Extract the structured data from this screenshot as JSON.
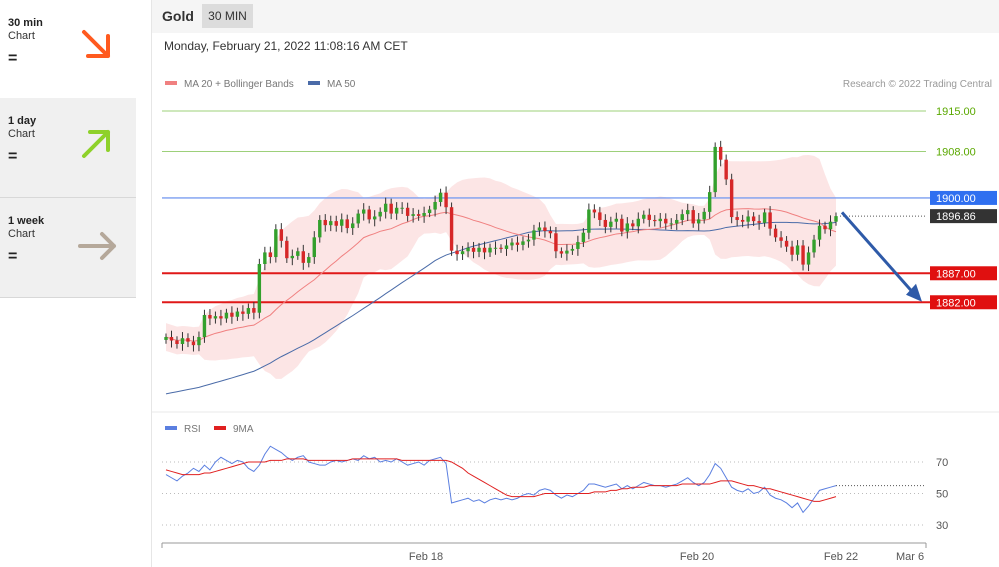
{
  "sidebar": {
    "items": [
      {
        "period": "30 min",
        "sub": "Chart",
        "status": "=",
        "arrow": "down-right",
        "color": "#ff5a1f"
      },
      {
        "period": "1 day",
        "sub": "Chart",
        "status": "=",
        "arrow": "up-right",
        "color": "#8ed12a"
      },
      {
        "period": "1 week",
        "sub": "Chart",
        "status": "=",
        "arrow": "right",
        "color": "#b5a89a"
      }
    ]
  },
  "header": {
    "symbol": "Gold",
    "interval": "30 MIN"
  },
  "timestamp": "Monday, February 21, 2022 11:08:16 AM CET",
  "colors": {
    "up": "#33a02c",
    "down": "#d62728",
    "ma20": "#f08080",
    "band": "#fbe0e0",
    "ma50": "#4a6ba8",
    "rsi": "#5b7fe0",
    "rsi_ma": "#e02020",
    "forecast": "#2e5aa8"
  },
  "chart_data": [
    {
      "type": "candlestick",
      "legend": [
        {
          "name": "MA 20 + Bollinger Bands",
          "color": "#f08080"
        },
        {
          "name": "MA 50",
          "color": "#4a6ba8"
        }
      ],
      "legend_placement": "top-left",
      "credit": "Research © 2022 Trading Central",
      "ylim": [
        1866,
        1920
      ],
      "levels": [
        {
          "value": 1915.0,
          "label": "1915.00",
          "style": "green-line"
        },
        {
          "value": 1908.0,
          "label": "1908.00",
          "style": "green-line"
        },
        {
          "value": 1900.0,
          "label": "1900.00",
          "style": "blue-tag"
        },
        {
          "value": 1896.86,
          "label": "1896.86",
          "style": "last-price-tag"
        },
        {
          "value": 1887.0,
          "label": "1887.00",
          "style": "red-tag"
        },
        {
          "value": 1882.0,
          "label": "1882.00",
          "style": "red-tag"
        }
      ],
      "closes": [
        1876.0,
        1875.4,
        1874.8,
        1875.8,
        1875.2,
        1874.6,
        1876.0,
        1879.8,
        1879.2,
        1879.6,
        1879.2,
        1880.2,
        1879.5,
        1880.4,
        1880.0,
        1881.0,
        1880.2,
        1888.6,
        1890.6,
        1889.8,
        1894.6,
        1892.6,
        1889.6,
        1890.0,
        1890.8,
        1888.8,
        1889.8,
        1893.2,
        1896.2,
        1895.3,
        1896.0,
        1895.2,
        1896.3,
        1894.8,
        1895.6,
        1897.3,
        1898.0,
        1896.3,
        1896.8,
        1897.6,
        1899.0,
        1897.3,
        1898.3,
        1898.3,
        1896.9,
        1897.2,
        1896.9,
        1897.4,
        1898.0,
        1899.3,
        1900.9,
        1898.4,
        1890.9,
        1890.3,
        1890.8,
        1891.4,
        1890.7,
        1891.4,
        1890.6,
        1891.4,
        1891.4,
        1891.2,
        1891.8,
        1892.3,
        1891.9,
        1892.5,
        1892.8,
        1894.4,
        1894.9,
        1894.3,
        1893.9,
        1890.8,
        1890.4,
        1890.9,
        1891.2,
        1892.4,
        1894.0,
        1898.0,
        1897.5,
        1896.2,
        1895.0,
        1895.9,
        1896.4,
        1894.2,
        1895.6,
        1895.1,
        1896.4,
        1897.1,
        1896.2,
        1896.0,
        1896.4,
        1895.6,
        1895.6,
        1896.2,
        1897.2,
        1897.9,
        1895.6,
        1896.3,
        1897.6,
        1901.0,
        1908.8,
        1906.6,
        1903.2,
        1896.7,
        1896.2,
        1895.9,
        1896.8,
        1896.0,
        1895.7,
        1897.5,
        1894.7,
        1893.2,
        1892.6,
        1891.6,
        1890.2,
        1891.8,
        1888.5,
        1890.6,
        1892.8,
        1895.2,
        1894.6,
        1895.9,
        1896.86
      ]
    },
    {
      "type": "line",
      "series": [
        {
          "name": "RSI",
          "color": "#5b7fe0",
          "values": [
            62,
            60,
            58,
            61,
            63,
            66,
            64,
            68,
            65,
            70,
            73,
            71,
            69,
            71,
            70,
            66,
            64,
            68,
            75,
            80,
            78,
            76,
            73,
            71,
            73,
            74,
            70,
            69,
            68,
            68,
            70,
            71,
            70,
            71,
            72,
            71,
            74,
            72,
            73,
            70,
            71,
            70,
            72,
            70,
            68,
            69,
            70,
            68,
            71,
            72,
            73,
            69,
            44,
            45,
            46,
            47,
            45,
            46,
            44,
            46,
            47,
            46,
            47,
            46,
            47,
            49,
            50,
            49,
            52,
            53,
            52,
            49,
            47,
            49,
            48,
            50,
            52,
            56,
            56,
            55,
            54,
            55,
            56,
            53,
            55,
            53,
            55,
            57,
            56,
            55,
            55,
            54,
            55,
            56,
            58,
            60,
            57,
            55,
            57,
            62,
            69,
            66,
            60,
            54,
            52,
            51,
            53,
            50,
            51,
            54,
            49,
            47,
            46,
            44,
            41,
            44,
            38,
            42,
            47,
            52,
            53,
            54,
            55
          ]
        },
        {
          "name": "9MA",
          "color": "#e02020",
          "values": [
            65,
            64,
            63,
            62,
            62,
            62,
            62,
            63,
            63,
            64,
            65,
            66,
            67,
            68,
            69,
            70,
            70,
            70,
            70,
            71,
            71,
            71,
            72,
            72,
            72,
            72,
            71,
            71,
            71,
            71,
            71,
            71,
            71,
            71,
            72,
            72,
            72,
            72,
            72,
            72,
            72,
            72,
            72,
            71,
            71,
            71,
            71,
            71,
            71,
            71,
            71,
            71,
            70,
            68,
            66,
            63,
            61,
            59,
            57,
            55,
            53,
            51,
            49,
            48,
            48,
            48,
            48,
            48,
            49,
            50,
            50,
            50,
            50,
            50,
            50,
            50,
            50,
            50,
            51,
            51,
            51,
            52,
            52,
            53,
            53,
            54,
            54,
            54,
            55,
            55,
            55,
            55,
            55,
            55,
            56,
            56,
            56,
            56,
            56,
            56,
            57,
            58,
            58,
            58,
            57,
            56,
            55,
            55,
            54,
            53,
            53,
            52,
            51,
            50,
            49,
            48,
            47,
            46,
            45,
            45,
            46,
            47,
            48
          ]
        }
      ],
      "ylim": [
        20,
        80
      ],
      "ticks": [
        "70",
        "50",
        "30"
      ]
    }
  ],
  "xaxis": {
    "ticks": [
      "Feb 18",
      "Feb 20",
      "Feb 22",
      "Mar 6"
    ]
  }
}
